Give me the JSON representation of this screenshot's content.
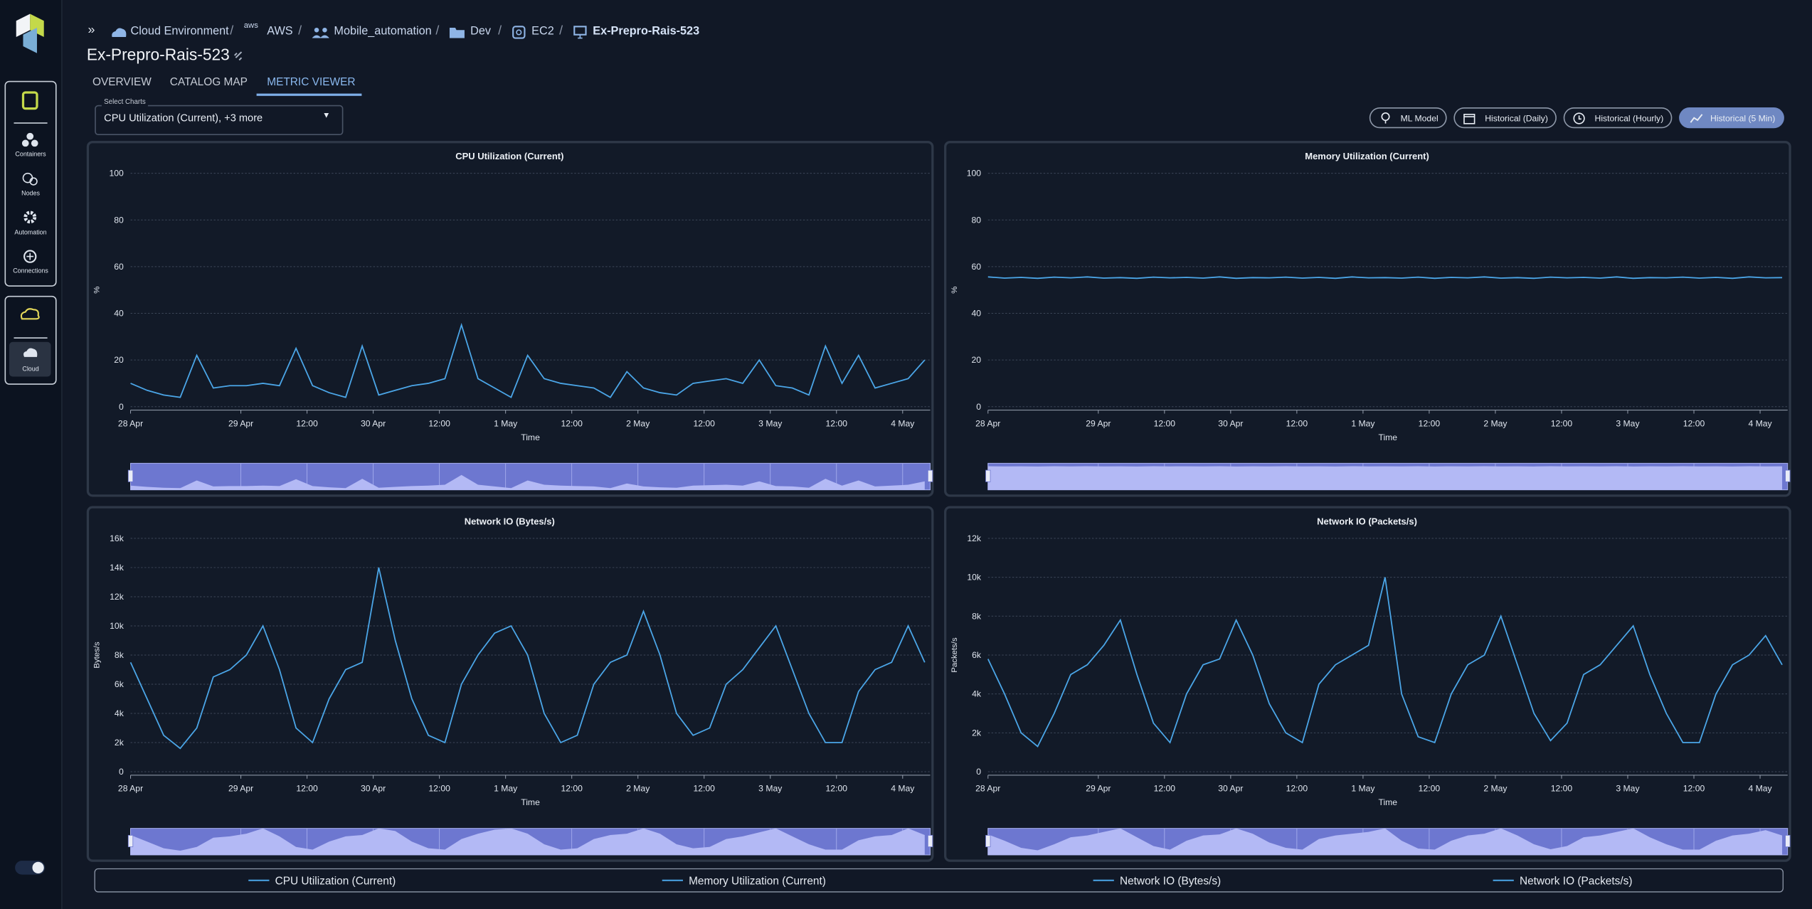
{
  "sidebar": [
    "Containers",
    "Nodes",
    "Automation",
    "Connections",
    "Cloud"
  ],
  "breadcrumb": [
    "Cloud Environment",
    "aws",
    "AWS",
    "Mobile_automation",
    "Dev",
    "EC2",
    "Ex-Prepro-Rais-523"
  ],
  "page_title": "Ex-Prepro-Rais-523",
  "tabs": [
    "OVERVIEW",
    "CATALOG MAP",
    "METRIC VIEWER"
  ],
  "select": {
    "label": "Select Charts",
    "value": "CPU Utilization (Current), +3 more"
  },
  "buttons": [
    "ML Model",
    "Historical (Daily)",
    "Historical (Hourly)",
    "Historical (5 Min)"
  ],
  "chart_data": [
    {
      "type": "line",
      "title": "CPU Utilization (Current)",
      "x_label": "Time",
      "y_label": "%",
      "x": [
        4,
        7,
        10,
        13,
        16,
        19,
        22,
        25,
        28,
        31,
        34,
        37,
        40,
        43,
        46,
        49,
        52,
        55,
        58,
        61,
        64,
        67,
        70,
        73,
        76,
        79,
        82,
        85,
        88,
        91,
        94,
        97,
        100,
        103,
        106,
        109,
        112,
        115,
        118,
        121,
        124,
        127,
        130,
        133,
        136,
        139,
        142,
        145,
        148
      ],
      "series": [
        {
          "name": "CPU Utilization (Current)",
          "color": "#4ba6e8",
          "values": [
            10,
            7,
            5,
            4,
            22,
            8,
            9,
            9,
            10,
            9,
            25,
            9,
            6,
            4,
            26,
            5,
            7,
            9,
            10,
            12,
            35,
            12,
            8,
            4,
            22,
            12,
            10,
            9,
            8,
            4,
            15,
            8,
            6,
            5,
            10,
            11,
            12,
            10,
            20,
            9,
            8,
            5,
            26,
            10,
            22,
            8,
            10,
            12,
            20
          ]
        }
      ],
      "xlim": [
        4,
        149
      ],
      "xticks": [
        {
          "value": 4,
          "label": "28 Apr"
        },
        {
          "value": 24,
          "label": "29 Apr"
        },
        {
          "value": 36,
          "label": "12:00"
        },
        {
          "value": 48,
          "label": "30 Apr"
        },
        {
          "value": 60,
          "label": "12:00"
        },
        {
          "value": 72,
          "label": "1 May"
        },
        {
          "value": 84,
          "label": "12:00"
        },
        {
          "value": 96,
          "label": "2 May"
        },
        {
          "value": 108,
          "label": "12:00"
        },
        {
          "value": 120,
          "label": "3 May"
        },
        {
          "value": 132,
          "label": "12:00"
        },
        {
          "value": 144,
          "label": "4 May"
        }
      ],
      "ylim": [
        0,
        100
      ],
      "yticks": [
        0,
        20,
        40,
        60,
        80,
        100
      ],
      "grid": true
    },
    {
      "type": "line",
      "title": "Memory Utilization (Current)",
      "x_label": "Time",
      "y_label": "%",
      "x": [
        4,
        7,
        10,
        13,
        16,
        19,
        22,
        25,
        28,
        31,
        34,
        37,
        40,
        43,
        46,
        49,
        52,
        55,
        58,
        61,
        64,
        67,
        70,
        73,
        76,
        79,
        82,
        85,
        88,
        91,
        94,
        97,
        100,
        103,
        106,
        109,
        112,
        115,
        118,
        121,
        124,
        127,
        130,
        133,
        136,
        139,
        142,
        145,
        148
      ],
      "series": [
        {
          "name": "Memory Utilization (Current)",
          "color": "#4ba6e8",
          "values": [
            55.6,
            55.1,
            55.4,
            55.0,
            55.5,
            55.2,
            55.6,
            55.1,
            55.3,
            55.0,
            55.5,
            55.2,
            55.4,
            55.1,
            55.6,
            55.0,
            55.3,
            55.2,
            55.5,
            55.1,
            55.4,
            55.0,
            55.6,
            55.2,
            55.3,
            55.1,
            55.5,
            55.0,
            55.4,
            55.2,
            55.6,
            55.1,
            55.3,
            55.0,
            55.5,
            55.2,
            55.4,
            55.1,
            55.6,
            55.0,
            55.3,
            55.2,
            55.5,
            55.1,
            55.4,
            55.0,
            55.6,
            55.2,
            55.3
          ]
        }
      ],
      "xlim": [
        4,
        149
      ],
      "xticks": [
        {
          "value": 4,
          "label": "28 Apr"
        },
        {
          "value": 24,
          "label": "29 Apr"
        },
        {
          "value": 36,
          "label": "12:00"
        },
        {
          "value": 48,
          "label": "30 Apr"
        },
        {
          "value": 60,
          "label": "12:00"
        },
        {
          "value": 72,
          "label": "1 May"
        },
        {
          "value": 84,
          "label": "12:00"
        },
        {
          "value": 96,
          "label": "2 May"
        },
        {
          "value": 108,
          "label": "12:00"
        },
        {
          "value": 120,
          "label": "3 May"
        },
        {
          "value": 132,
          "label": "12:00"
        },
        {
          "value": 144,
          "label": "4 May"
        }
      ],
      "ylim": [
        0,
        100
      ],
      "yticks": [
        0,
        20,
        40,
        60,
        80,
        100
      ],
      "grid": true
    },
    {
      "type": "line",
      "title": "Network IO (Bytes/s)",
      "x_label": "Time",
      "y_label": "Bytes/s",
      "x": [
        4,
        7,
        10,
        13,
        16,
        19,
        22,
        25,
        28,
        31,
        34,
        37,
        40,
        43,
        46,
        49,
        52,
        55,
        58,
        61,
        64,
        67,
        70,
        73,
        76,
        79,
        82,
        85,
        88,
        91,
        94,
        97,
        100,
        103,
        106,
        109,
        112,
        115,
        118,
        121,
        124,
        127,
        130,
        133,
        136,
        139,
        142,
        145,
        148
      ],
      "series": [
        {
          "name": "Network IO (Bytes/s)",
          "color": "#4ba6e8",
          "values": [
            7500,
            5000,
            2500,
            1600,
            3000,
            6500,
            7000,
            8000,
            10000,
            7000,
            3000,
            2000,
            5000,
            7000,
            7500,
            14000,
            9000,
            5000,
            2500,
            2000,
            6000,
            8000,
            9500,
            10000,
            8000,
            4000,
            2000,
            2500,
            6000,
            7500,
            8000,
            11000,
            8000,
            4000,
            2500,
            3000,
            6000,
            7000,
            8500,
            10000,
            7000,
            4000,
            2000,
            2000,
            5500,
            7000,
            7500,
            10000,
            7500
          ]
        }
      ],
      "xlim": [
        4,
        149
      ],
      "xticks": [
        {
          "value": 4,
          "label": "28 Apr"
        },
        {
          "value": 24,
          "label": "29 Apr"
        },
        {
          "value": 36,
          "label": "12:00"
        },
        {
          "value": 48,
          "label": "30 Apr"
        },
        {
          "value": 60,
          "label": "12:00"
        },
        {
          "value": 72,
          "label": "1 May"
        },
        {
          "value": 84,
          "label": "12:00"
        },
        {
          "value": 96,
          "label": "2 May"
        },
        {
          "value": 108,
          "label": "12:00"
        },
        {
          "value": 120,
          "label": "3 May"
        },
        {
          "value": 132,
          "label": "12:00"
        },
        {
          "value": 144,
          "label": "4 May"
        }
      ],
      "ylim": [
        0,
        16000
      ],
      "yticks": [
        0,
        {
          "value": 2000,
          "label": "2k"
        },
        {
          "value": 4000,
          "label": "4k"
        },
        {
          "value": 6000,
          "label": "6k"
        },
        {
          "value": 8000,
          "label": "8k"
        },
        {
          "value": 10000,
          "label": "10k"
        },
        {
          "value": 12000,
          "label": "12k"
        },
        {
          "value": 14000,
          "label": "14k"
        },
        {
          "value": 16000,
          "label": "16k"
        }
      ],
      "grid": true
    },
    {
      "type": "line",
      "title": "Network IO (Packets/s)",
      "x_label": "Time",
      "y_label": "Packets/s",
      "x": [
        4,
        7,
        10,
        13,
        16,
        19,
        22,
        25,
        28,
        31,
        34,
        37,
        40,
        43,
        46,
        49,
        52,
        55,
        58,
        61,
        64,
        67,
        70,
        73,
        76,
        79,
        82,
        85,
        88,
        91,
        94,
        97,
        100,
        103,
        106,
        109,
        112,
        115,
        118,
        121,
        124,
        127,
        130,
        133,
        136,
        139,
        142,
        145,
        148
      ],
      "series": [
        {
          "name": "Network IO (Packets/s)",
          "color": "#4ba6e8",
          "values": [
            5800,
            4000,
            2000,
            1300,
            3000,
            5000,
            5500,
            6500,
            7800,
            5000,
            2500,
            1500,
            4000,
            5500,
            5800,
            7800,
            6000,
            3500,
            2000,
            1500,
            4500,
            5500,
            6000,
            6500,
            10000,
            4000,
            1800,
            1500,
            4000,
            5500,
            6000,
            8000,
            5500,
            3000,
            1600,
            2500,
            5000,
            5500,
            6500,
            7500,
            5000,
            3000,
            1500,
            1500,
            4000,
            5500,
            6000,
            7000,
            5500
          ]
        }
      ],
      "xlim": [
        4,
        149
      ],
      "xticks": [
        {
          "value": 4,
          "label": "28 Apr"
        },
        {
          "value": 24,
          "label": "29 Apr"
        },
        {
          "value": 36,
          "label": "12:00"
        },
        {
          "value": 48,
          "label": "30 Apr"
        },
        {
          "value": 60,
          "label": "12:00"
        },
        {
          "value": 72,
          "label": "1 May"
        },
        {
          "value": 84,
          "label": "12:00"
        },
        {
          "value": 96,
          "label": "2 May"
        },
        {
          "value": 108,
          "label": "12:00"
        },
        {
          "value": 120,
          "label": "3 May"
        },
        {
          "value": 132,
          "label": "12:00"
        },
        {
          "value": 144,
          "label": "4 May"
        }
      ],
      "ylim": [
        0,
        12000
      ],
      "yticks": [
        0,
        {
          "value": 2000,
          "label": "2k"
        },
        {
          "value": 4000,
          "label": "4k"
        },
        {
          "value": 6000,
          "label": "6k"
        },
        {
          "value": 8000,
          "label": "8k"
        },
        {
          "value": 10000,
          "label": "10k"
        },
        {
          "value": 12000,
          "label": "12k"
        }
      ],
      "grid": true
    }
  ]
}
